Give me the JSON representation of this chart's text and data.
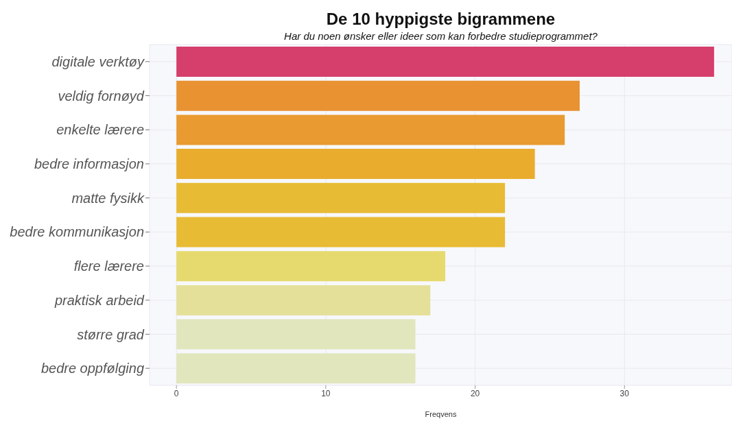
{
  "chart_data": {
    "type": "bar",
    "orientation": "horizontal",
    "title": "De 10 hyppigste bigrammene",
    "subtitle": "Har du noen ønsker eller ideer som kan forbedre studieprogrammet?",
    "xlabel": "Freqvens",
    "categories": [
      "digitale verktøy",
      "veldig fornøyd",
      "enkelte lærere",
      "bedre informasjon",
      "matte fysikk",
      "bedre kommunikasjon",
      "flere lærere",
      "praktisk arbeid",
      "større grad",
      "bedre oppfølging"
    ],
    "values": [
      36,
      27,
      26,
      24,
      22,
      22,
      18,
      17,
      16,
      16
    ],
    "colors": [
      "#d63e6b",
      "#e89232",
      "#e99a30",
      "#e9ac2d",
      "#e8bb35",
      "#e8bb35",
      "#e6da6f",
      "#e4e09a",
      "#e1e6bd",
      "#e1e6bd"
    ],
    "xlim": [
      -1.8,
      37.2
    ],
    "xticks": [
      0,
      10,
      20,
      30
    ],
    "grid": true,
    "legend": false
  }
}
